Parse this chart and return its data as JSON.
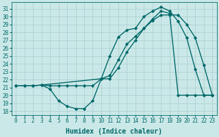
{
  "xlabel": "Humidex (Indice chaleur)",
  "bg_color": "#cbe8e8",
  "line_color": "#006868",
  "grid_color": "#a8cccc",
  "xlim": [
    -0.5,
    23.5
  ],
  "ylim": [
    17.5,
    31.8
  ],
  "yticks": [
    18,
    19,
    20,
    21,
    22,
    23,
    24,
    25,
    26,
    27,
    28,
    29,
    30,
    31
  ],
  "xticks": [
    0,
    1,
    2,
    3,
    4,
    5,
    6,
    7,
    8,
    9,
    10,
    11,
    12,
    13,
    14,
    15,
    16,
    17,
    18,
    19,
    20,
    21,
    22,
    23
  ],
  "line1_x": [
    0,
    1,
    2,
    3,
    4,
    5,
    6,
    7,
    8,
    9,
    10,
    11,
    12,
    13,
    14,
    15,
    16,
    17,
    18,
    19,
    20,
    21,
    22,
    23
  ],
  "line1_y": [
    21.2,
    21.2,
    21.2,
    21.3,
    20.8,
    19.3,
    18.6,
    18.3,
    18.3,
    19.3,
    22.1,
    25.0,
    27.4,
    28.3,
    28.5,
    30.0,
    30.7,
    31.2,
    30.7,
    29.4,
    27.3,
    23.3,
    20.0,
    20.0
  ],
  "line2_x": [
    0,
    1,
    2,
    3,
    4,
    5,
    6,
    7,
    8,
    9,
    10,
    11,
    12,
    13,
    14,
    15,
    16,
    17,
    18,
    19,
    20,
    21,
    22,
    23
  ],
  "line2_y": [
    21.2,
    21.2,
    21.2,
    21.3,
    21.2,
    21.2,
    21.2,
    21.2,
    21.2,
    21.2,
    22.1,
    22.5,
    24.5,
    26.5,
    27.5,
    28.5,
    29.7,
    30.7,
    30.4,
    20.0,
    20.0,
    20.0,
    20.0,
    20.0
  ],
  "line3_x": [
    3,
    10,
    11,
    12,
    13,
    14,
    15,
    16,
    17,
    18,
    19,
    20,
    21,
    22,
    23
  ],
  "line3_y": [
    21.3,
    22.1,
    22.1,
    23.5,
    25.5,
    27.0,
    28.5,
    29.5,
    30.2,
    30.2,
    30.2,
    29.0,
    27.3,
    23.8,
    20.0
  ],
  "marker": "D",
  "markersize": 2.2,
  "linewidth": 1.0,
  "xlabel_fontsize": 7,
  "tick_fontsize": 5.5
}
